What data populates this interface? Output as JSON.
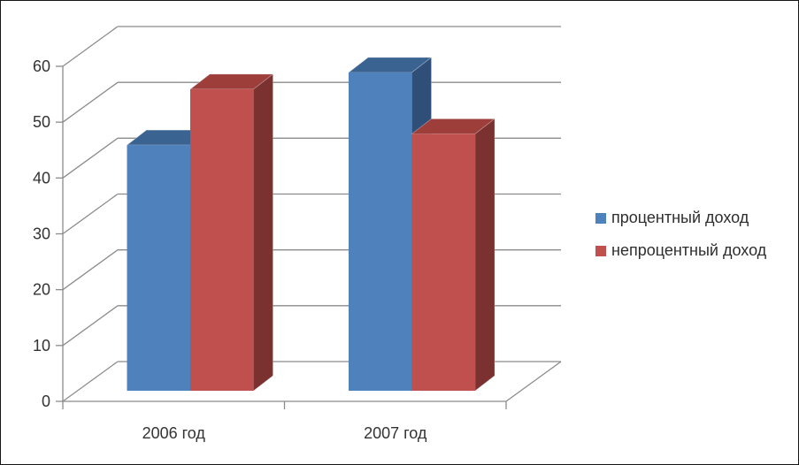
{
  "chart_data": {
    "type": "bar",
    "variant": "3d-clustered-column",
    "title": "",
    "xlabel": "",
    "ylabel": "",
    "categories": [
      "2006 год",
      "2007 год"
    ],
    "series": [
      {
        "name": "процентный доход",
        "values": [
          44,
          57
        ],
        "color": "#4f81bd",
        "color_top": "#3b6391",
        "color_side": "#2f4f79"
      },
      {
        "name": "непроцентный доход",
        "values": [
          54,
          46
        ],
        "color": "#c0504d",
        "color_top": "#9d3e3b",
        "color_side": "#7b312f"
      }
    ],
    "y_axis": {
      "min": 0,
      "max": 60,
      "step": 10,
      "tick_labels": [
        "0",
        "10",
        "20",
        "30",
        "40",
        "50",
        "60"
      ]
    },
    "grid": true,
    "legend_position": "right",
    "style": {
      "background": "#ffffff",
      "frame_border_color": "#161616",
      "gridline_color": "#8b8b8b",
      "text_color": "#333333"
    }
  }
}
